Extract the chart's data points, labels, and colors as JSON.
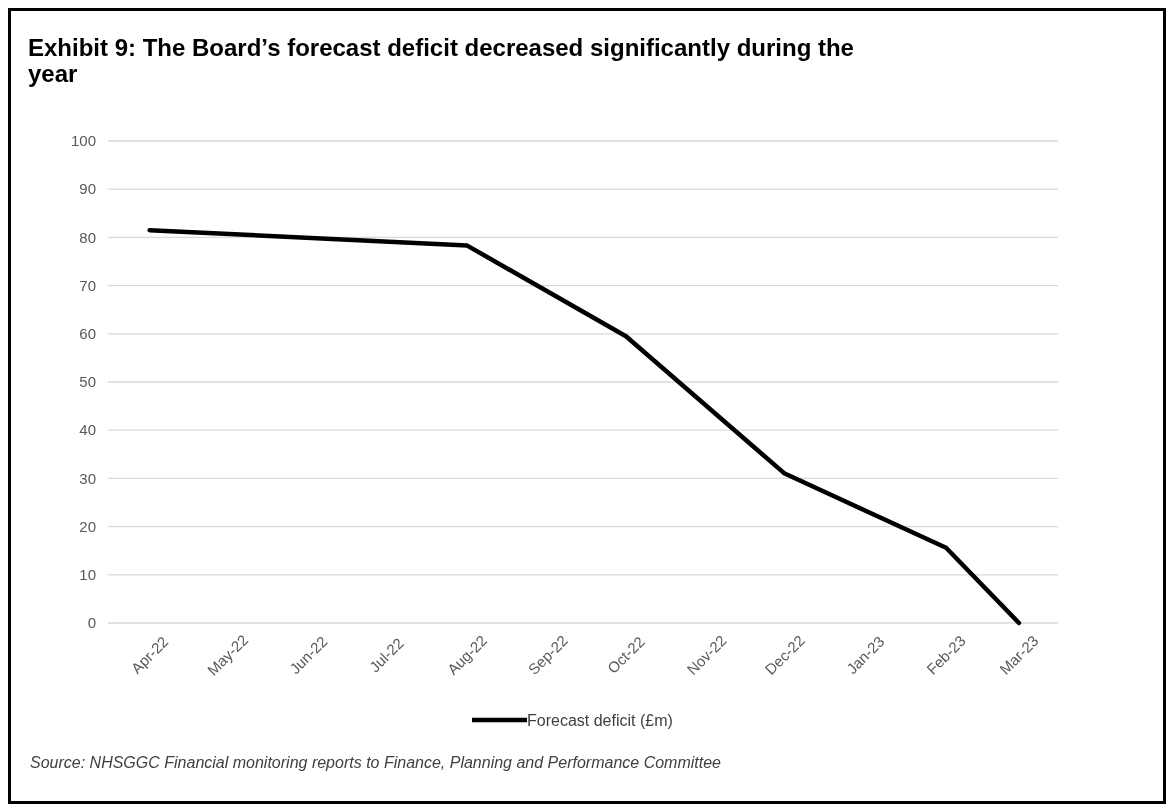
{
  "chart_data": {
    "type": "line",
    "title": "Exhibit 9: The Board’s forecast deficit decreased significantly during the year",
    "x": [
      "2022-04",
      "2022-08",
      "2022-10",
      "2022-12",
      "2023-02",
      "2023-03"
    ],
    "series": [
      {
        "name": "Forecast deficit (£m)",
        "color": "#000000",
        "values": [
          81.5,
          78.3,
          59.5,
          31,
          15.6,
          0
        ]
      }
    ],
    "xlim": [
      "2022-03-16",
      "2023-03-16"
    ],
    "xticks": [
      {
        "value": "2022-04",
        "label": "Apr-22"
      },
      {
        "value": "2022-05",
        "label": "May-22"
      },
      {
        "value": "2022-06",
        "label": "Jun-22"
      },
      {
        "value": "2022-07",
        "label": "Jul-22"
      },
      {
        "value": "2022-08",
        "label": "Aug-22"
      },
      {
        "value": "2022-09",
        "label": "Sep-22"
      },
      {
        "value": "2022-10",
        "label": "Oct-22"
      },
      {
        "value": "2022-11",
        "label": "Nov-22"
      },
      {
        "value": "2022-12",
        "label": "Dec-22"
      },
      {
        "value": "2023-01",
        "label": "Jan-23"
      },
      {
        "value": "2023-02",
        "label": "Feb-23"
      },
      {
        "value": "2023-03",
        "label": "Mar-23"
      }
    ],
    "ylim": [
      0,
      100
    ],
    "yticks": [
      0,
      10,
      20,
      30,
      40,
      50,
      60,
      70,
      80,
      90,
      100
    ],
    "grid": "y",
    "legend": "bottom",
    "marker": "none",
    "line_style": "solid",
    "annotations": [
      "Source: NHSGGC Financial monitoring reports to Finance, Planning and Performance Committee"
    ]
  }
}
